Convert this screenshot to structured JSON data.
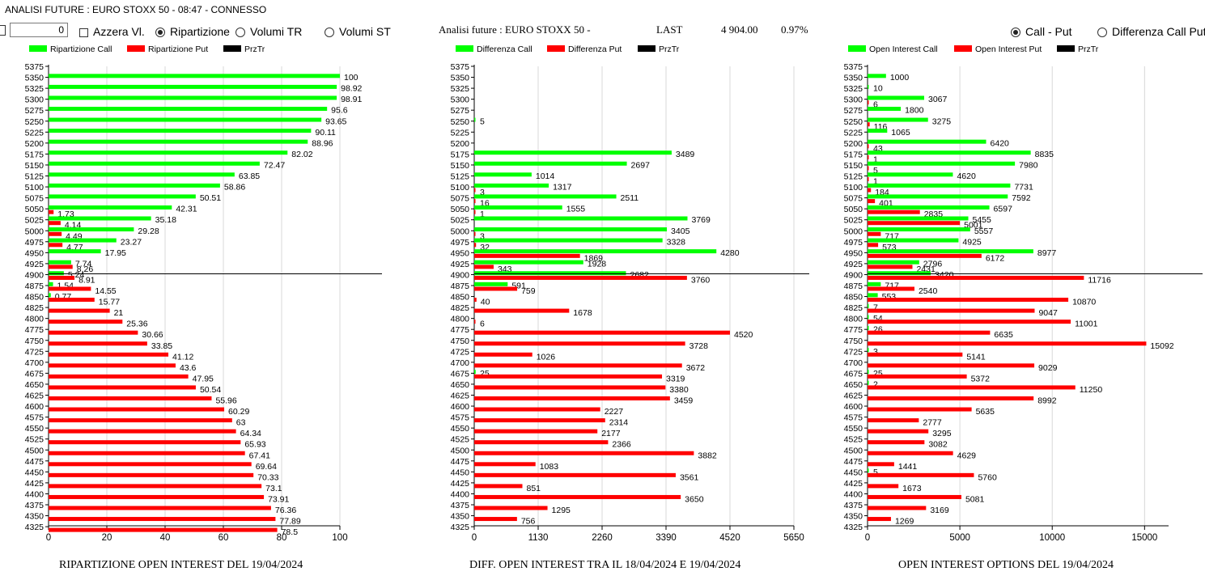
{
  "window_title": "ANALISI FUTURE : EURO STOXX 50 - 08:47 - CONNESSO",
  "controls": {
    "number_value": "0",
    "azzera_label": "Azzera Vl.",
    "view_options": [
      {
        "label": "Ripartizione",
        "selected": true
      },
      {
        "label": "Volumi TR",
        "selected": false
      },
      {
        "label": "Volumi ST",
        "selected": false
      }
    ],
    "right_options": [
      {
        "label": "Call - Put",
        "selected": true
      },
      {
        "label": "Differenza Call Put",
        "selected": false
      }
    ]
  },
  "header": {
    "title": "Analisi future : EURO STOXX 50 -",
    "last_label": "LAST",
    "last_value": "4 904.00",
    "last_change": "0.97%"
  },
  "colors": {
    "call": "#00ff00",
    "put": "#ff0000",
    "przTr": "#000000",
    "grid": "#d8d8d8"
  },
  "chart_data": [
    {
      "type": "bar",
      "orientation": "horizontal",
      "title": "RIPARTIZIONE OPEN INTEREST DEL 19/04/2024",
      "legend": [
        "Ripartizione Call",
        "Ripartizione Put",
        "PrzTr"
      ],
      "strikes": [
        "5375",
        "5350",
        "5325",
        "5300",
        "5275",
        "5250",
        "5225",
        "5200",
        "5175",
        "5150",
        "5125",
        "5100",
        "5075",
        "5050",
        "5025",
        "5000",
        "4975",
        "4950",
        "4925",
        "4900",
        "4875",
        "4850",
        "4825",
        "4800",
        "4775",
        "4750",
        "4725",
        "4700",
        "4675",
        "4650",
        "4625",
        "4600",
        "4575",
        "4550",
        "4525",
        "4500",
        "4475",
        "4450",
        "4425",
        "4400",
        "4375",
        "4350",
        "4325"
      ],
      "xlim": [
        0,
        100
      ],
      "xticks": [
        "0",
        "20",
        "40",
        "60",
        "80",
        "100"
      ],
      "price_line": 4900,
      "series": [
        {
          "name": "Ripartizione Call",
          "values": [
            null,
            100,
            98.92,
            98.91,
            95.6,
            93.65,
            90.11,
            88.96,
            82.02,
            72.47,
            63.85,
            58.86,
            50.51,
            42.31,
            35.18,
            29.28,
            23.27,
            17.95,
            7.74,
            5.24,
            1.54,
            0.77,
            null,
            null,
            null,
            null,
            null,
            null,
            null,
            null,
            null,
            null,
            null,
            null,
            null,
            null,
            null,
            null,
            null,
            null,
            null,
            null,
            null
          ]
        },
        {
          "name": "Ripartizione Put",
          "values": [
            null,
            null,
            null,
            null,
            null,
            null,
            null,
            null,
            null,
            null,
            null,
            null,
            null,
            1.73,
            4.14,
            4.49,
            4.77,
            null,
            8.26,
            8.91,
            14.55,
            15.77,
            21,
            25.36,
            30.66,
            33.85,
            41.12,
            43.6,
            47.95,
            50.54,
            55.96,
            60.29,
            63,
            64.34,
            65.93,
            67.41,
            69.64,
            70.33,
            73.1,
            73.91,
            76.36,
            77.89,
            78.5
          ]
        }
      ]
    },
    {
      "type": "bar",
      "orientation": "horizontal",
      "title": "DIFF. OPEN INTEREST TRA IL 18/04/2024 E 19/04/2024",
      "legend": [
        "Differenza Call",
        "Differenza Put",
        "PrzTr"
      ],
      "strikes": [
        "5375",
        "5350",
        "5325",
        "5300",
        "5275",
        "5250",
        "5225",
        "5200",
        "5175",
        "5150",
        "5125",
        "5100",
        "5075",
        "5050",
        "5025",
        "5000",
        "4975",
        "4950",
        "4925",
        "4900",
        "4875",
        "4850",
        "4825",
        "4800",
        "4775",
        "4750",
        "4725",
        "4700",
        "4675",
        "4650",
        "4625",
        "4600",
        "4575",
        "4550",
        "4525",
        "4500",
        "4475",
        "4450",
        "4425",
        "4400",
        "4375",
        "4350",
        "4325"
      ],
      "xlim": [
        0,
        5650
      ],
      "xticks": [
        "0",
        "1130",
        "2260",
        "3390",
        "4520",
        "5650"
      ],
      "price_line": 4900,
      "series": [
        {
          "name": "Differenza Call",
          "values": [
            null,
            null,
            null,
            null,
            null,
            5,
            null,
            null,
            3489,
            2697,
            1014,
            1317,
            2511,
            1555,
            3769,
            3405,
            3328,
            4280,
            1928,
            2682,
            591,
            null,
            null,
            null,
            null,
            null,
            null,
            null,
            25,
            null,
            null,
            null,
            null,
            null,
            null,
            null,
            null,
            null,
            null,
            null,
            null,
            null,
            null
          ]
        },
        {
          "name": "Differenza Put",
          "values": [
            null,
            null,
            null,
            null,
            null,
            null,
            null,
            null,
            null,
            null,
            null,
            3,
            16,
            1,
            null,
            3,
            32,
            1869,
            343,
            3760,
            759,
            40,
            1678,
            6,
            4520,
            3728,
            1026,
            3672,
            3319,
            3380,
            3459,
            2227,
            2314,
            2177,
            2366,
            3882,
            1083,
            3561,
            851,
            3650,
            1295,
            756,
            null
          ]
        }
      ]
    },
    {
      "type": "bar",
      "orientation": "horizontal",
      "title": "OPEN INTEREST OPTIONS DEL 19/04/2024",
      "legend": [
        "Open Interest Call",
        "Open Interest Put",
        "PrzTr"
      ],
      "strikes": [
        "5375",
        "5350",
        "5325",
        "5300",
        "5275",
        "5250",
        "5225",
        "5200",
        "5175",
        "5150",
        "5125",
        "5100",
        "5075",
        "5050",
        "5025",
        "5000",
        "4975",
        "4950",
        "4925",
        "4900",
        "4875",
        "4850",
        "4825",
        "4800",
        "4775",
        "4750",
        "4725",
        "4700",
        "4675",
        "4650",
        "4625",
        "4600",
        "4575",
        "4550",
        "4525",
        "4500",
        "4475",
        "4450",
        "4425",
        "4400",
        "4375",
        "4350",
        "4325"
      ],
      "xlim": [
        0,
        16300
      ],
      "xticks": [
        "0",
        "5000",
        "10000",
        "15000"
      ],
      "price_line": 4900,
      "series": [
        {
          "name": "Open Interest Call",
          "values": [
            null,
            1000,
            10,
            3067,
            1800,
            3275,
            1065,
            6420,
            8835,
            7980,
            4620,
            7731,
            7592,
            6597,
            5455,
            5557,
            4925,
            8977,
            2796,
            3420,
            717,
            553,
            7,
            54,
            26,
            null,
            3,
            null,
            25,
            2,
            null,
            null,
            null,
            null,
            null,
            null,
            null,
            5,
            null,
            null,
            null,
            null,
            null
          ]
        },
        {
          "name": "Open Interest Put",
          "values": [
            null,
            null,
            null,
            6,
            null,
            116,
            null,
            43,
            1,
            5,
            1,
            184,
            401,
            2835,
            5001,
            717,
            573,
            6172,
            2431,
            11716,
            2540,
            10870,
            9047,
            11001,
            6635,
            15092,
            5141,
            9029,
            5372,
            11250,
            8992,
            5635,
            2777,
            3295,
            3082,
            4629,
            1441,
            5760,
            1673,
            5081,
            3169,
            1269,
            null
          ]
        }
      ]
    }
  ]
}
